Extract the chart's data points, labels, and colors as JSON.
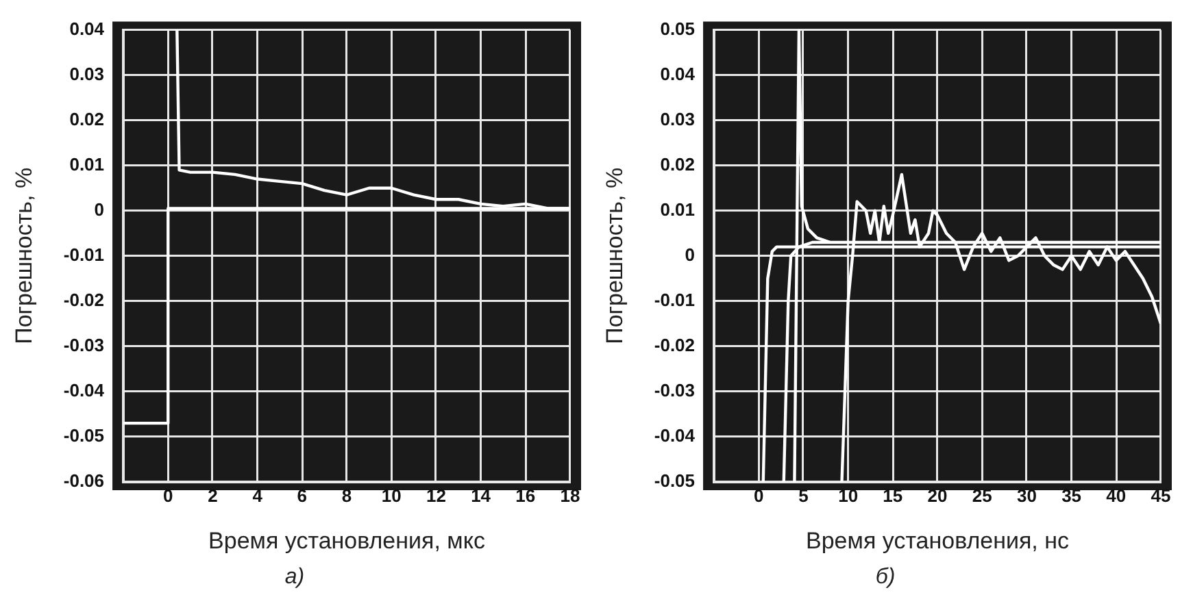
{
  "chart_data": [
    {
      "type": "line",
      "xlabel": "Время установления, мкс",
      "ylabel": "Погрешность, %",
      "annotations": [
        "а)"
      ],
      "xlim": [
        -2,
        18
      ],
      "xticks": [
        0,
        2,
        4,
        6,
        8,
        10,
        12,
        14,
        16,
        18
      ],
      "ylim": [
        -0.06,
        0.04
      ],
      "yticks": [
        -0.06,
        -0.05,
        -0.04,
        -0.03,
        -0.02,
        -0.01,
        0,
        0.01,
        0.02,
        0.03,
        0.04
      ],
      "grid": true,
      "legend": false,
      "marker": "none",
      "line_style": "solid",
      "series": [
        {
          "color": "#ffffff",
          "x": [
            -2,
            0,
            0,
            0.5,
            18
          ],
          "values": [
            -0.047,
            -0.047,
            0.0005,
            0.0005,
            0.0005
          ]
        },
        {
          "color": "#ffffff",
          "x": [
            0.4,
            0.5,
            1,
            2,
            3,
            4,
            5,
            6,
            7,
            8,
            9,
            10,
            11,
            12,
            13,
            14,
            15,
            16,
            17,
            18
          ],
          "values": [
            0.04,
            0.009,
            0.0085,
            0.0085,
            0.008,
            0.007,
            0.0065,
            0.006,
            0.0045,
            0.0035,
            0.005,
            0.005,
            0.0035,
            0.0025,
            0.0025,
            0.0015,
            0.001,
            0.0015,
            0.0005,
            0.0005
          ]
        }
      ]
    },
    {
      "type": "line",
      "xlabel": "Время установления, нс",
      "ylabel": "Погрешность, %",
      "annotations": [
        "б)"
      ],
      "xlim": [
        -5,
        45
      ],
      "xticks": [
        0,
        5,
        10,
        15,
        20,
        25,
        30,
        35,
        40,
        45
      ],
      "ylim": [
        -0.05,
        0.05
      ],
      "yticks": [
        -0.05,
        -0.04,
        -0.03,
        -0.02,
        -0.01,
        0,
        0.01,
        0.02,
        0.03,
        0.04,
        0.05
      ],
      "grid": true,
      "legend": false,
      "marker": "none",
      "line_style": "solid",
      "series": [
        {
          "color": "#ffffff",
          "x": [
            0.5,
            1,
            1.5,
            2,
            45
          ],
          "values": [
            -0.05,
            -0.005,
            0.001,
            0.002,
            0.002
          ]
        },
        {
          "color": "#ffffff",
          "x": [
            2.8,
            3.3,
            3.6,
            4.5,
            6,
            45
          ],
          "values": [
            -0.05,
            -0.01,
            0,
            0.002,
            0.003,
            0.003
          ]
        },
        {
          "color": "#ffffff",
          "x": [
            4,
            4.5,
            4.8,
            5.5,
            6.5,
            8
          ],
          "values": [
            -0.05,
            0.05,
            0.011,
            0.006,
            0.004,
            0.003
          ]
        },
        {
          "color": "#ffffff",
          "x": [
            9.3,
            10,
            10.5,
            11,
            12,
            12.5,
            13,
            13.5,
            14,
            14.5,
            15,
            16,
            17,
            17.5,
            18,
            19,
            19.5,
            20,
            21,
            22,
            23,
            24,
            25,
            26,
            27,
            28,
            29,
            30,
            31,
            32,
            33,
            34,
            35,
            36,
            37,
            38,
            39,
            40,
            41,
            42,
            43,
            44,
            45
          ],
          "values": [
            -0.05,
            -0.01,
            0,
            0.012,
            0.01,
            0.005,
            0.01,
            0.003,
            0.011,
            0.005,
            0.009,
            0.018,
            0.005,
            0.008,
            0.002,
            0.005,
            0.01,
            0.009,
            0.005,
            0.003,
            -0.003,
            0.002,
            0.005,
            0.001,
            0.004,
            -0.001,
            0,
            0.002,
            0.004,
            0,
            -0.002,
            -0.003,
            0,
            -0.003,
            0.001,
            -0.002,
            0.002,
            -0.001,
            0.001,
            -0.002,
            -0.005,
            -0.009,
            -0.015
          ]
        }
      ]
    }
  ]
}
